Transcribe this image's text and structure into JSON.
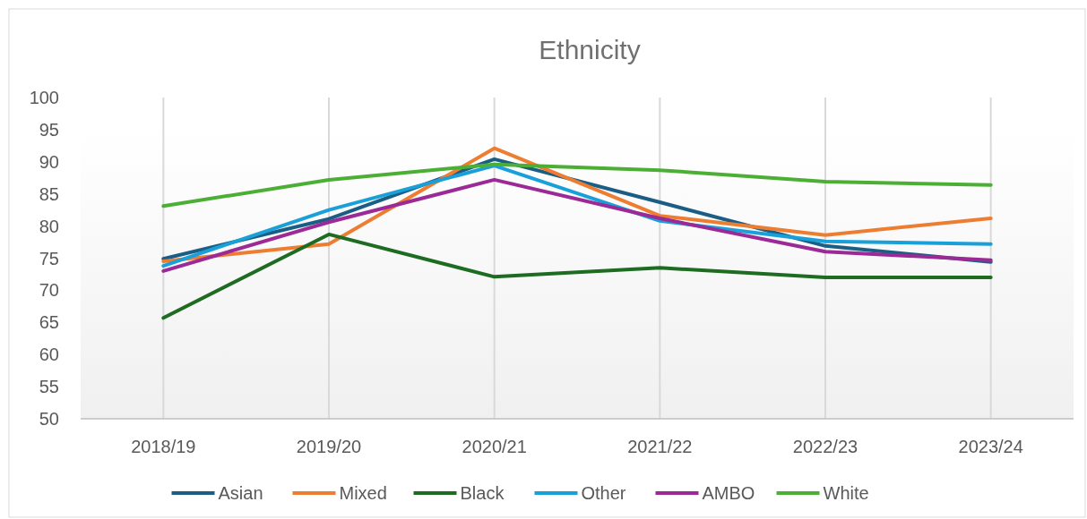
{
  "chart_data": {
    "type": "line",
    "title": "Ethnicity",
    "categories": [
      "2018/19",
      "2019/20",
      "2020/21",
      "2021/22",
      "2022/23",
      "2023/24"
    ],
    "series": [
      {
        "name": "Asian",
        "color": "#1b5e85",
        "values": [
          74.9,
          81.1,
          90.4,
          83.7,
          76.9,
          74.4
        ]
      },
      {
        "name": "Mixed",
        "color": "#ed7d31",
        "values": [
          74.5,
          77.2,
          92.1,
          81.6,
          78.6,
          81.2
        ]
      },
      {
        "name": "Black",
        "color": "#1e6b22",
        "values": [
          65.7,
          78.7,
          72.1,
          73.5,
          72.0,
          72.0
        ]
      },
      {
        "name": "Other",
        "color": "#1aa0d8",
        "values": [
          73.8,
          82.5,
          89.4,
          80.8,
          77.6,
          77.2
        ]
      },
      {
        "name": "AMBO",
        "color": "#9c2a96",
        "values": [
          73.0,
          80.6,
          87.2,
          81.2,
          76.0,
          74.7
        ]
      },
      {
        "name": "White",
        "color": "#4caf35",
        "values": [
          83.1,
          87.2,
          89.6,
          88.7,
          86.9,
          86.4
        ]
      }
    ],
    "ylim": [
      50,
      100
    ],
    "yticks": [
      50,
      55,
      60,
      65,
      70,
      75,
      80,
      85,
      90,
      95,
      100
    ],
    "grid": "x",
    "legend": "bottom",
    "marker": "none",
    "line_style": "solid"
  }
}
